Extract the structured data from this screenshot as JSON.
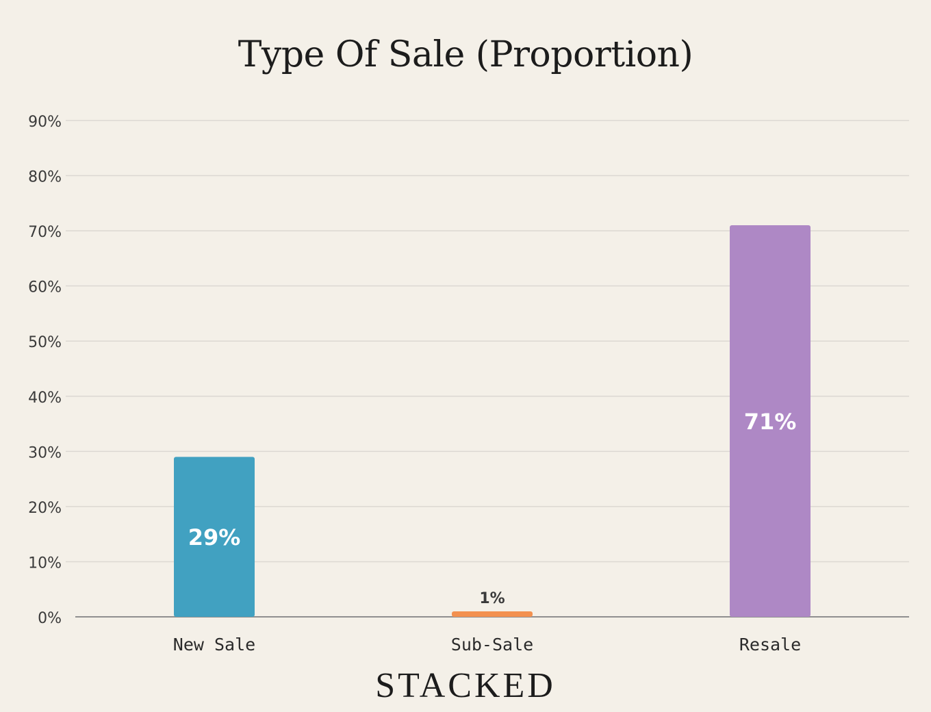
{
  "chart_data": {
    "type": "bar",
    "title": "Type Of Sale (Proportion)",
    "categories": [
      "New Sale",
      "Sub-Sale",
      "Resale"
    ],
    "values": [
      29,
      1,
      71
    ],
    "data_labels": [
      "29%",
      "1%",
      "71%"
    ],
    "colors": [
      "#41a1c1",
      "#f39150",
      "#ae88c5"
    ],
    "ylim": [
      0,
      90
    ],
    "yticks": [
      0,
      10,
      20,
      30,
      40,
      50,
      60,
      70,
      80,
      90
    ],
    "ytick_labels": [
      "0%",
      "10%",
      "20%",
      "30%",
      "40%",
      "50%",
      "60%",
      "70%",
      "80%",
      "90%"
    ],
    "grid": true,
    "legend": "none"
  },
  "brand": {
    "logo_text": "STACKED"
  }
}
